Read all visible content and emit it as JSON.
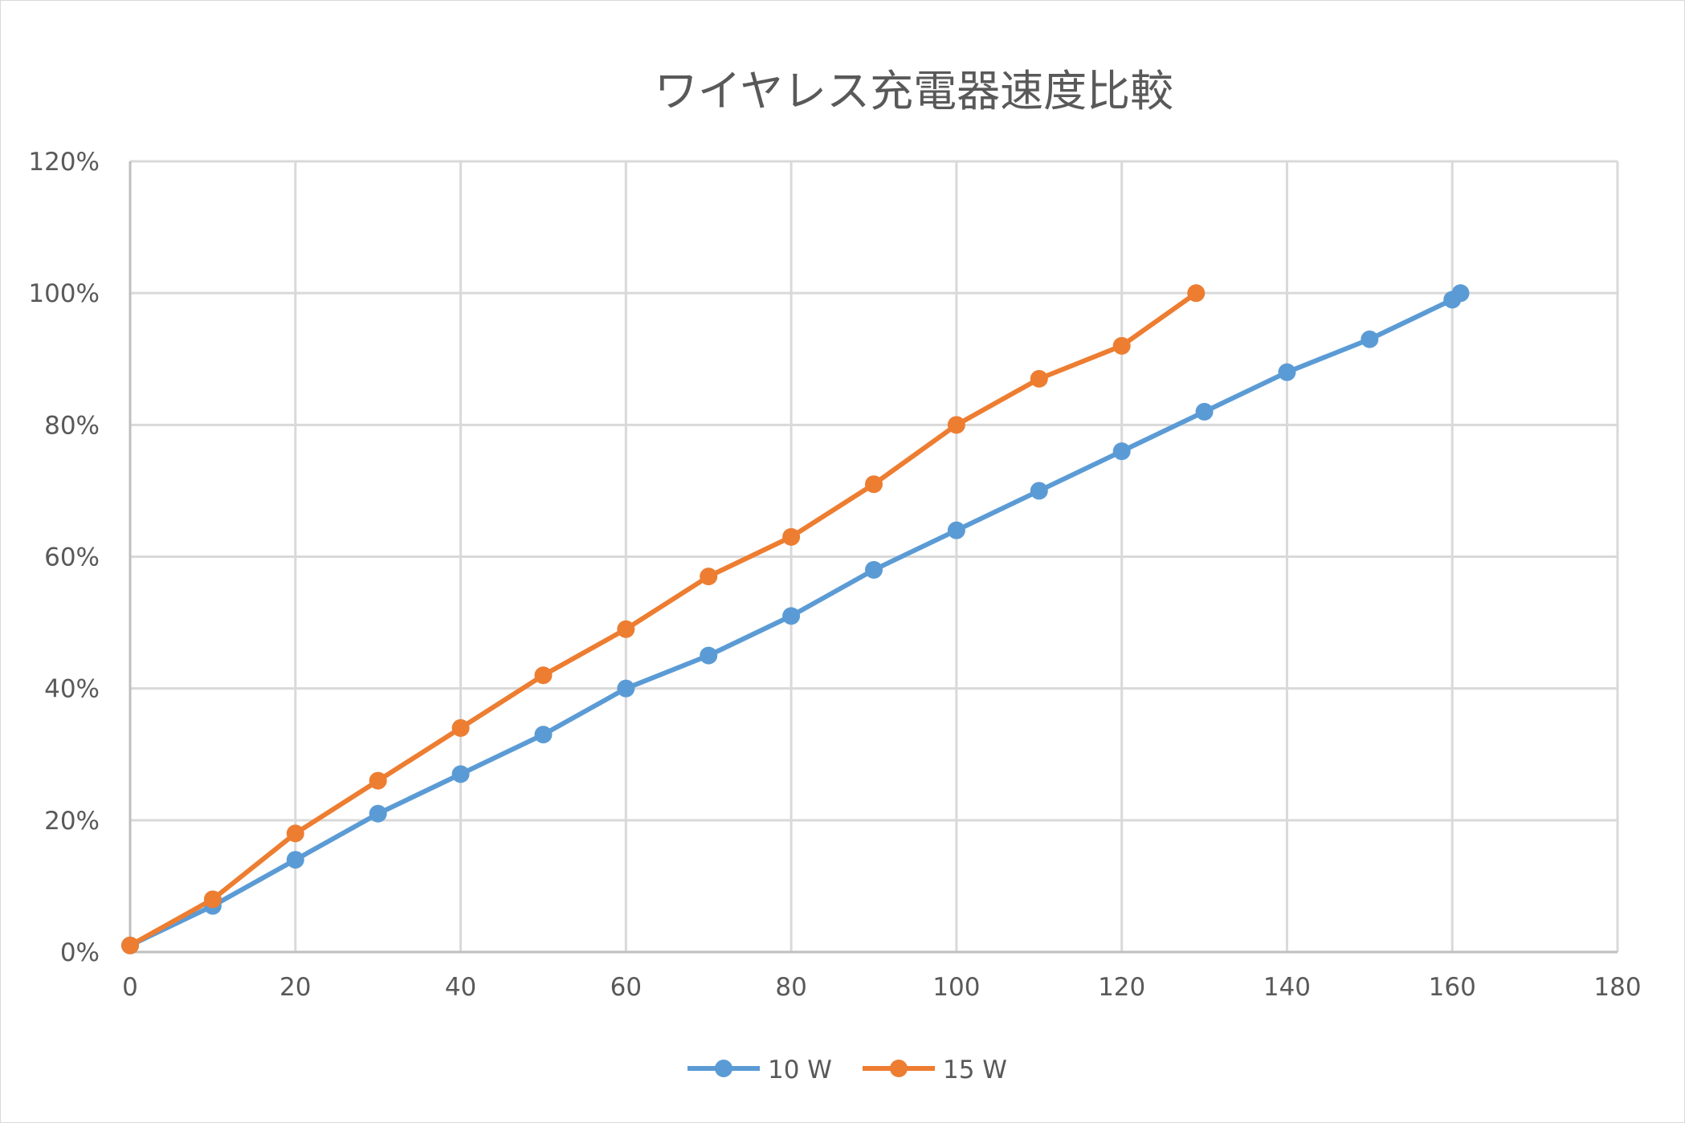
{
  "chart_data": {
    "type": "line",
    "title": "ワイヤレス充電器速度比較",
    "xlabel": "",
    "ylabel": "",
    "xlim": [
      0,
      180
    ],
    "ylim": [
      0,
      120
    ],
    "x_ticks": [
      "0",
      "20",
      "40",
      "60",
      "80",
      "100",
      "120",
      "140",
      "160",
      "180"
    ],
    "y_ticks": [
      "0%",
      "20%",
      "40%",
      "60%",
      "80%",
      "100%",
      "120%"
    ],
    "grid": true,
    "legend_position": "bottom",
    "series": [
      {
        "name": "10 W",
        "color": "#5b9bd5",
        "x": [
          0,
          10,
          20,
          30,
          40,
          50,
          60,
          70,
          80,
          90,
          100,
          110,
          120,
          130,
          140,
          150,
          160,
          161
        ],
        "y": [
          1,
          7,
          14,
          21,
          27,
          33,
          40,
          45,
          51,
          58,
          64,
          70,
          76,
          82,
          88,
          93,
          99,
          100
        ]
      },
      {
        "name": "15 W",
        "color": "#ed7d31",
        "x": [
          0,
          10,
          20,
          30,
          40,
          50,
          60,
          70,
          80,
          90,
          100,
          110,
          120,
          129
        ],
        "y": [
          1,
          8,
          18,
          26,
          34,
          42,
          49,
          57,
          63,
          71,
          80,
          87,
          92,
          100
        ]
      }
    ]
  }
}
